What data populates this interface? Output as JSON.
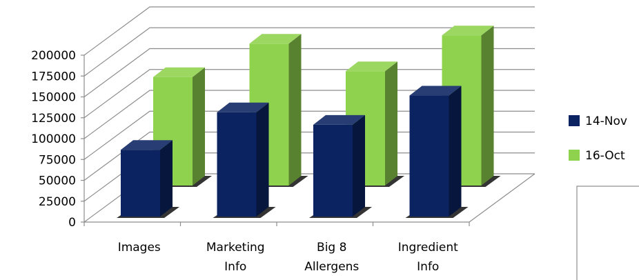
{
  "chart_data": {
    "type": "bar",
    "categories": [
      [
        "Images"
      ],
      [
        "Marketing",
        "Info"
      ],
      [
        "Big 8",
        "Allergens"
      ],
      [
        "Ingredient",
        "Info"
      ]
    ],
    "series": [
      {
        "name": "14-Nov",
        "values": [
          80000,
          125000,
          110000,
          145000
        ],
        "color": "#0b2361"
      },
      {
        "name": "16-Oct",
        "values": [
          130000,
          170000,
          137000,
          180000
        ],
        "color": "#8fd24d"
      }
    ],
    "y_ticks": [
      "0",
      "25000",
      "50000",
      "75000",
      "100000",
      "125000",
      "150000",
      "175000",
      "200000"
    ],
    "ylim": [
      0,
      200000
    ],
    "grid": true,
    "legend": "right"
  }
}
